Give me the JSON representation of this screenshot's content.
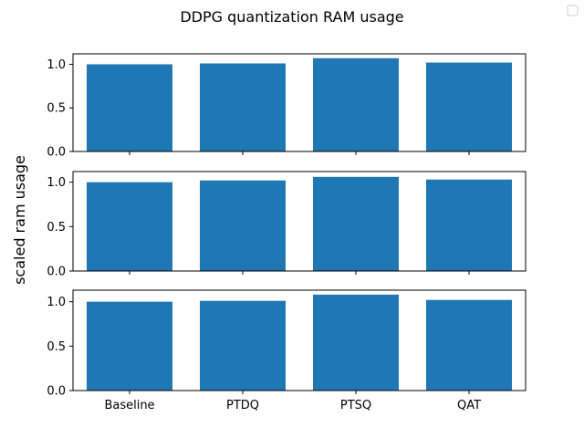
{
  "figure": {
    "title": "DDPG quantization RAM usage",
    "ylabel": "scaled ram usage"
  },
  "chart_data": [
    {
      "type": "bar",
      "categories": [
        "Baseline",
        "PTDQ",
        "PTSQ",
        "QAT"
      ],
      "values": [
        1.0,
        1.01,
        1.07,
        1.02
      ],
      "ylim": [
        0,
        1.12
      ],
      "yticks": [
        0.0,
        0.5,
        1.0
      ],
      "ytick_labels": [
        "0.0",
        "0.5",
        "1.0"
      ],
      "bar_color": "#1f77b4",
      "show_xtick_labels": false
    },
    {
      "type": "bar",
      "categories": [
        "Baseline",
        "PTDQ",
        "PTSQ",
        "QAT"
      ],
      "values": [
        1.0,
        1.02,
        1.06,
        1.03
      ],
      "ylim": [
        0,
        1.12
      ],
      "yticks": [
        0.0,
        0.5,
        1.0
      ],
      "ytick_labels": [
        "0.0",
        "0.5",
        "1.0"
      ],
      "bar_color": "#1f77b4",
      "show_xtick_labels": false
    },
    {
      "type": "bar",
      "categories": [
        "Baseline",
        "PTDQ",
        "PTSQ",
        "QAT"
      ],
      "values": [
        1.0,
        1.01,
        1.08,
        1.02
      ],
      "ylim": [
        0,
        1.13
      ],
      "yticks": [
        0.0,
        0.5,
        1.0
      ],
      "ytick_labels": [
        "0.0",
        "0.5",
        "1.0"
      ],
      "bar_color": "#1f77b4",
      "show_xtick_labels": true
    }
  ],
  "legend": {
    "placement": "top-right",
    "entries": []
  }
}
